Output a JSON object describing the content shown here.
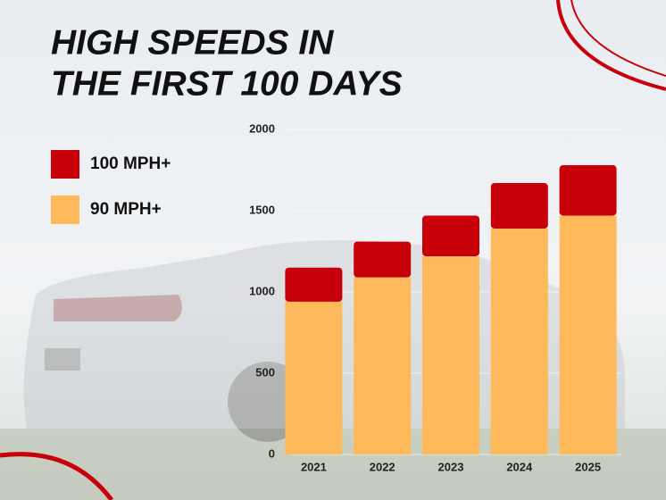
{
  "chart_data": {
    "type": "stacked-bar",
    "title": [
      "HIGH SPEEDS IN",
      "THE FIRST 100 DAYS"
    ],
    "categories": [
      "2021",
      "2022",
      "2023",
      "2024",
      "2025"
    ],
    "series": [
      {
        "name": "100 MPH+",
        "color": "#c8000a",
        "values": [
          210,
          220,
          250,
          280,
          310
        ]
      },
      {
        "name": "90 MPH+",
        "color": "#fdb95a",
        "values": [
          940,
          1090,
          1220,
          1390,
          1470
        ]
      }
    ],
    "ylim": [
      0,
      2000
    ],
    "yticks": [
      0,
      500,
      1000,
      1500,
      2000
    ],
    "grid": true
  }
}
